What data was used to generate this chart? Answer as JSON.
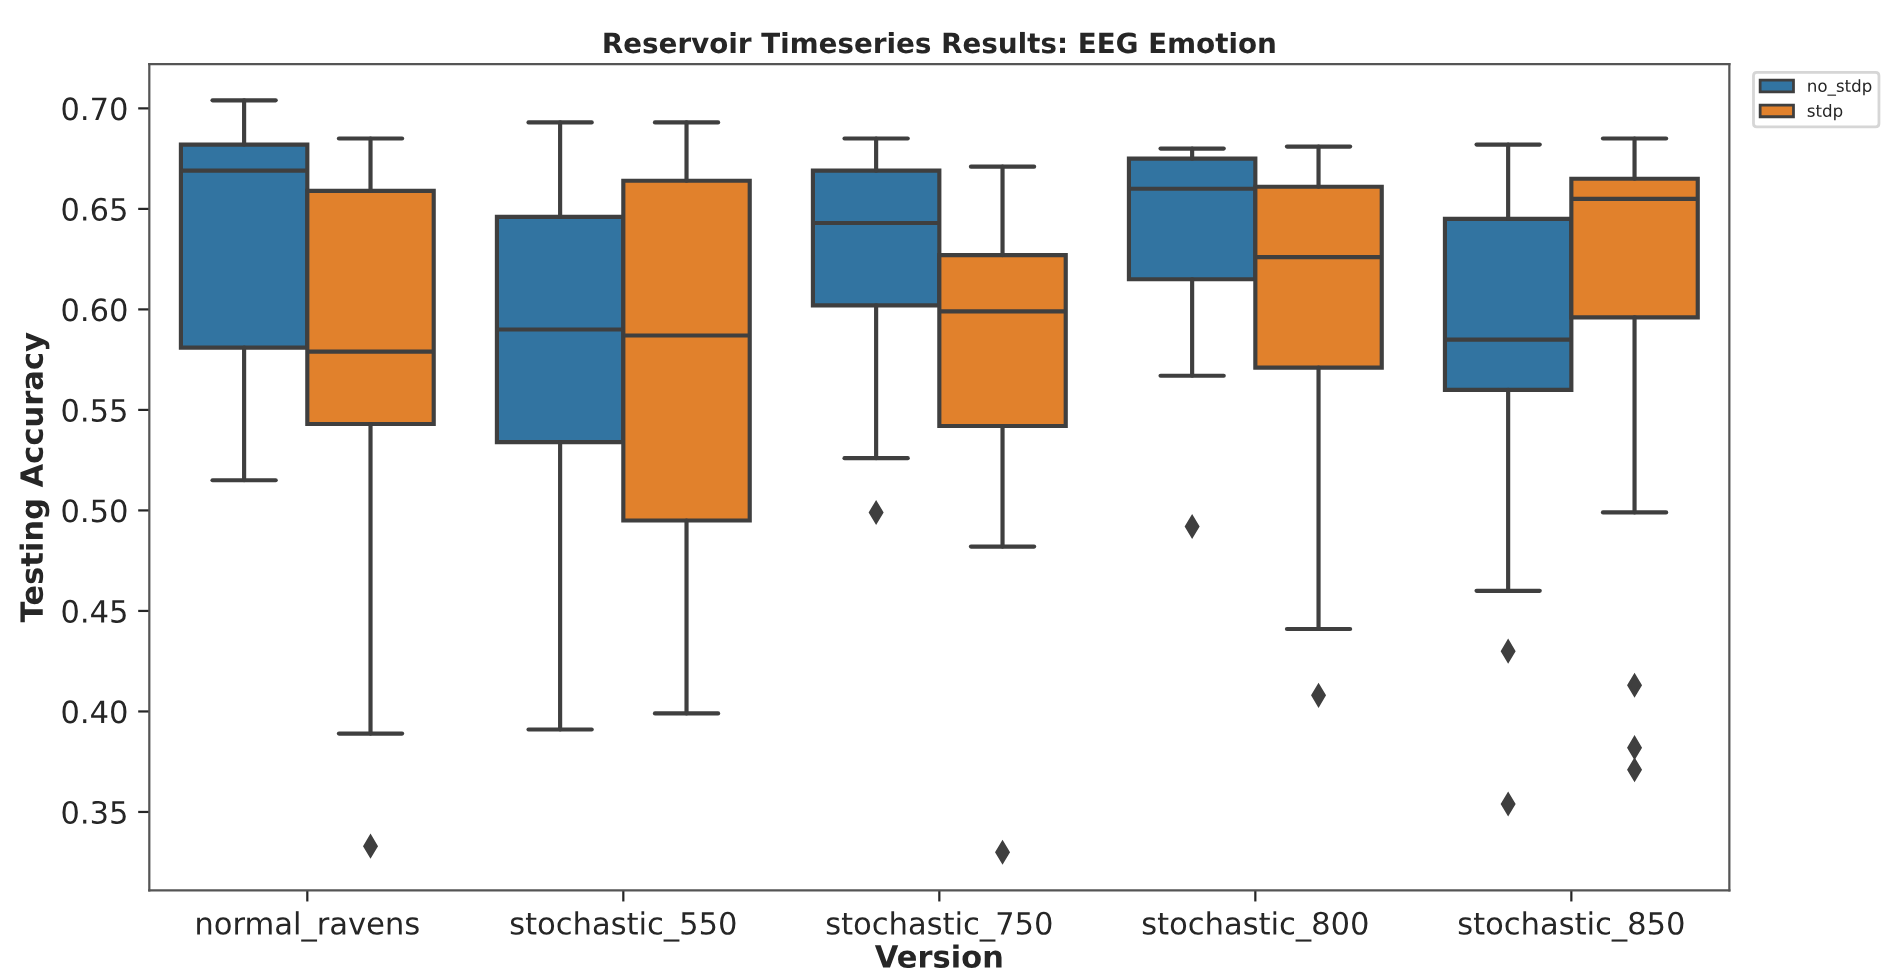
{
  "chart_data": {
    "type": "box",
    "title": "Reservoir Timeseries Results: EEG Emotion",
    "xlabel": "Version",
    "ylabel": "Testing Accuracy",
    "categories": [
      "normal_ravens",
      "stochastic_550",
      "stochastic_750",
      "stochastic_800",
      "stochastic_850"
    ],
    "ylim": [
      0.311,
      0.722
    ],
    "yticks": [
      0.35,
      {
        "value": 0.4,
        "label": "0.40"
      },
      0.45,
      {
        "value": 0.5,
        "label": "0.50"
      },
      0.55,
      {
        "value": 0.6,
        "label": "0.60"
      },
      0.65,
      {
        "value": 0.7,
        "label": "0.70"
      }
    ],
    "legend": "top right",
    "grid": false,
    "marker": "diamond",
    "series": [
      {
        "name": "no_stdp",
        "color": "#3274a1",
        "boxes": [
          {
            "low": 0.515,
            "q1": 0.581,
            "median": 0.669,
            "q3": 0.682,
            "high": 0.704
          },
          {
            "low": 0.391,
            "q1": 0.534,
            "median": 0.59,
            "q3": 0.646,
            "high": 0.693
          },
          {
            "low": 0.526,
            "q1": 0.602,
            "median": 0.643,
            "q3": 0.669,
            "high": 0.685,
            "outliers": [
              0.499
            ]
          },
          {
            "low": 0.567,
            "q1": 0.615,
            "median": 0.66,
            "q3": 0.675,
            "high": 0.68,
            "outliers": [
              0.492
            ]
          },
          {
            "low": 0.46,
            "q1": 0.56,
            "median": 0.585,
            "q3": 0.645,
            "high": 0.682,
            "outliers": [
              0.43,
              0.354
            ]
          }
        ]
      },
      {
        "name": "stdp",
        "color": "#e1812c",
        "boxes": [
          {
            "low": 0.389,
            "q1": 0.543,
            "median": 0.579,
            "q3": 0.659,
            "high": 0.685,
            "outliers": [
              0.333
            ]
          },
          {
            "low": 0.399,
            "q1": 0.495,
            "median": 0.587,
            "q3": 0.664,
            "high": 0.693
          },
          {
            "low": 0.482,
            "q1": 0.542,
            "median": 0.599,
            "q3": 0.627,
            "high": 0.671,
            "outliers": [
              0.33
            ]
          },
          {
            "low": 0.441,
            "q1": 0.571,
            "median": 0.626,
            "q3": 0.661,
            "high": 0.681,
            "outliers": [
              0.408
            ]
          },
          {
            "low": 0.499,
            "q1": 0.596,
            "median": 0.655,
            "q3": 0.665,
            "high": 0.685,
            "outliers": [
              0.413,
              0.382,
              0.371
            ]
          }
        ]
      }
    ]
  }
}
